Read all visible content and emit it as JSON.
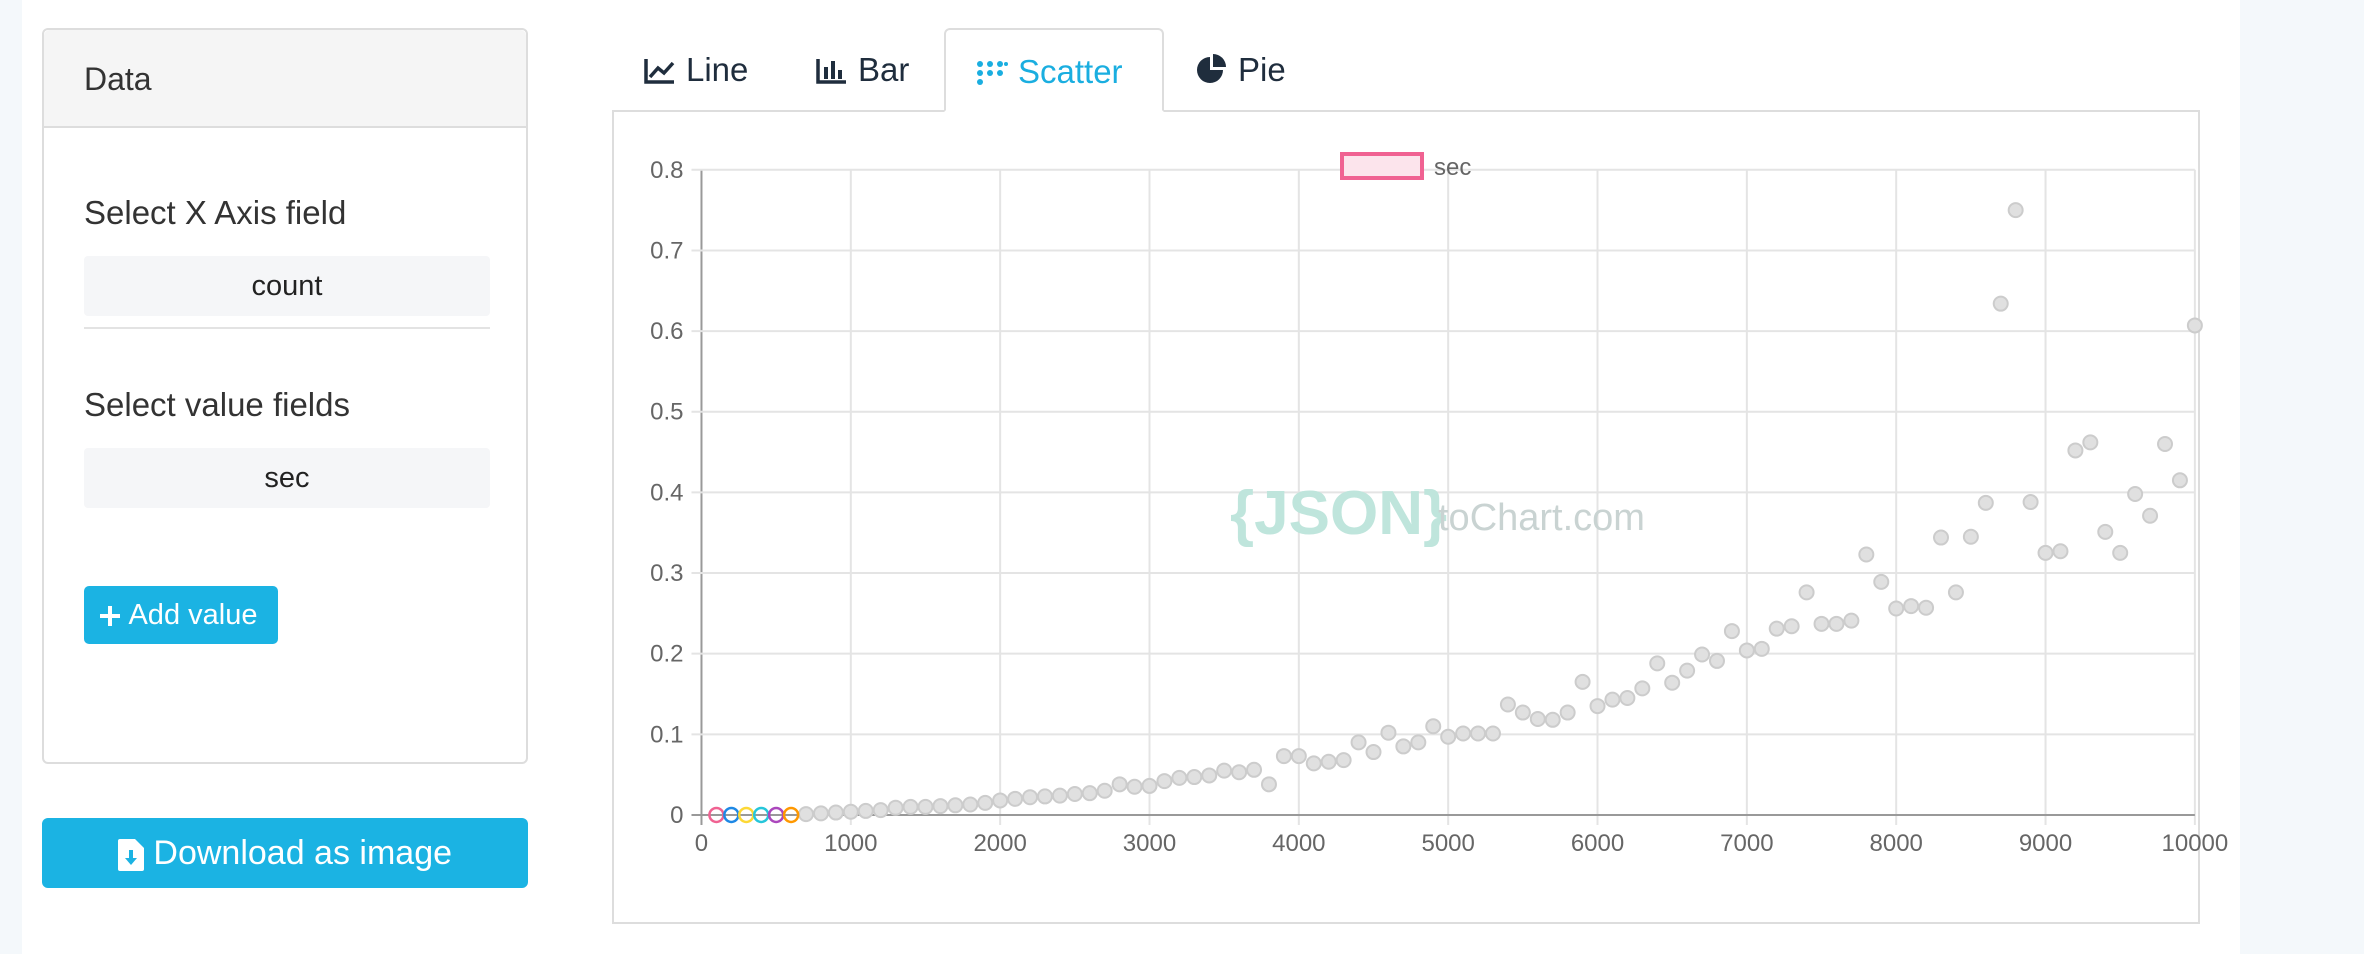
{
  "panel": {
    "heading": "Data",
    "x_axis_label": "Select X Axis field",
    "x_axis_value": "count",
    "value_fields_label": "Select value fields",
    "value_field": "sec",
    "add_value_label": "Add value"
  },
  "download_label": "Download as image",
  "tabs": [
    {
      "label": "Line",
      "icon": "line-chart-icon",
      "active": false
    },
    {
      "label": "Bar",
      "icon": "bar-chart-icon",
      "active": false
    },
    {
      "label": "Scatter",
      "icon": "scatter-chart-icon",
      "active": true
    },
    {
      "label": "Pie",
      "icon": "pie-chart-icon",
      "active": false
    }
  ],
  "watermark": {
    "brace_text": "{JSON}",
    "suffix_text": "toChart.com"
  },
  "colors": {
    "accent": "#1bb3e3",
    "legend_border": "#f06292",
    "legend_fill": "#fce4ec",
    "point_fill": "#e0e0e0",
    "point_stroke": "#cccccc"
  },
  "chart_data": {
    "type": "scatter",
    "legend": [
      "sec"
    ],
    "legend_placement": "top-center",
    "grid": true,
    "xlim": [
      0,
      10000
    ],
    "ylim": [
      0,
      0.8
    ],
    "x_ticks": [
      "0",
      "1000",
      "2000",
      "3000",
      "4000",
      "5000",
      "6000",
      "7000",
      "8000",
      "9000",
      "10000"
    ],
    "y_ticks": [
      "0",
      "0.1",
      "0.2",
      "0.3",
      "0.4",
      "0.5",
      "0.6",
      "0.7",
      "0.8"
    ],
    "highlighted_points": [
      {
        "x": 100,
        "y": 0,
        "color": "#f06292"
      },
      {
        "x": 200,
        "y": 0,
        "color": "#1e88e5"
      },
      {
        "x": 300,
        "y": 0,
        "color": "#fdd835"
      },
      {
        "x": 400,
        "y": 0,
        "color": "#26c6da"
      },
      {
        "x": 500,
        "y": 0,
        "color": "#ab47bc"
      },
      {
        "x": 600,
        "y": 0,
        "color": "#ff9800"
      }
    ],
    "series": [
      {
        "name": "sec",
        "points": [
          [
            700,
            0.001
          ],
          [
            800,
            0.002
          ],
          [
            900,
            0.003
          ],
          [
            1000,
            0.004
          ],
          [
            1100,
            0.005
          ],
          [
            1200,
            0.006
          ],
          [
            1300,
            0.009
          ],
          [
            1400,
            0.01
          ],
          [
            1500,
            0.01
          ],
          [
            1600,
            0.011
          ],
          [
            1700,
            0.012
          ],
          [
            1800,
            0.013
          ],
          [
            1900,
            0.015
          ],
          [
            2000,
            0.018
          ],
          [
            2100,
            0.02
          ],
          [
            2200,
            0.022
          ],
          [
            2300,
            0.023
          ],
          [
            2400,
            0.024
          ],
          [
            2500,
            0.026
          ],
          [
            2600,
            0.027
          ],
          [
            2700,
            0.03
          ],
          [
            2800,
            0.038
          ],
          [
            2900,
            0.035
          ],
          [
            3000,
            0.036
          ],
          [
            3100,
            0.042
          ],
          [
            3200,
            0.046
          ],
          [
            3300,
            0.047
          ],
          [
            3400,
            0.049
          ],
          [
            3500,
            0.055
          ],
          [
            3600,
            0.053
          ],
          [
            3700,
            0.056
          ],
          [
            3800,
            0.038
          ],
          [
            3900,
            0.073
          ],
          [
            4000,
            0.073
          ],
          [
            4100,
            0.064
          ],
          [
            4200,
            0.066
          ],
          [
            4300,
            0.068
          ],
          [
            4400,
            0.09
          ],
          [
            4500,
            0.078
          ],
          [
            4600,
            0.102
          ],
          [
            4700,
            0.085
          ],
          [
            4800,
            0.09
          ],
          [
            4900,
            0.11
          ],
          [
            5000,
            0.097
          ],
          [
            5100,
            0.101
          ],
          [
            5200,
            0.101
          ],
          [
            5300,
            0.101
          ],
          [
            5400,
            0.137
          ],
          [
            5500,
            0.127
          ],
          [
            5600,
            0.119
          ],
          [
            5700,
            0.118
          ],
          [
            5800,
            0.127
          ],
          [
            5900,
            0.165
          ],
          [
            6000,
            0.135
          ],
          [
            6100,
            0.143
          ],
          [
            6200,
            0.145
          ],
          [
            6300,
            0.157
          ],
          [
            6400,
            0.188
          ],
          [
            6500,
            0.164
          ],
          [
            6600,
            0.179
          ],
          [
            6700,
            0.199
          ],
          [
            6800,
            0.191
          ],
          [
            6900,
            0.228
          ],
          [
            7000,
            0.204
          ],
          [
            7100,
            0.206
          ],
          [
            7200,
            0.231
          ],
          [
            7300,
            0.234
          ],
          [
            7400,
            0.276
          ],
          [
            7500,
            0.237
          ],
          [
            7600,
            0.237
          ],
          [
            7700,
            0.241
          ],
          [
            7800,
            0.323
          ],
          [
            7900,
            0.289
          ],
          [
            8000,
            0.256
          ],
          [
            8100,
            0.259
          ],
          [
            8200,
            0.257
          ],
          [
            8300,
            0.344
          ],
          [
            8400,
            0.276
          ],
          [
            8500,
            0.345
          ],
          [
            8600,
            0.387
          ],
          [
            8700,
            0.634
          ],
          [
            8800,
            0.75
          ],
          [
            8900,
            0.388
          ],
          [
            9000,
            0.325
          ],
          [
            9100,
            0.327
          ],
          [
            9200,
            0.452
          ],
          [
            9300,
            0.462
          ],
          [
            9400,
            0.351
          ],
          [
            9500,
            0.325
          ],
          [
            9600,
            0.398
          ],
          [
            9700,
            0.371
          ],
          [
            9800,
            0.46
          ],
          [
            9900,
            0.415
          ],
          [
            10000,
            0.607
          ]
        ]
      }
    ]
  }
}
